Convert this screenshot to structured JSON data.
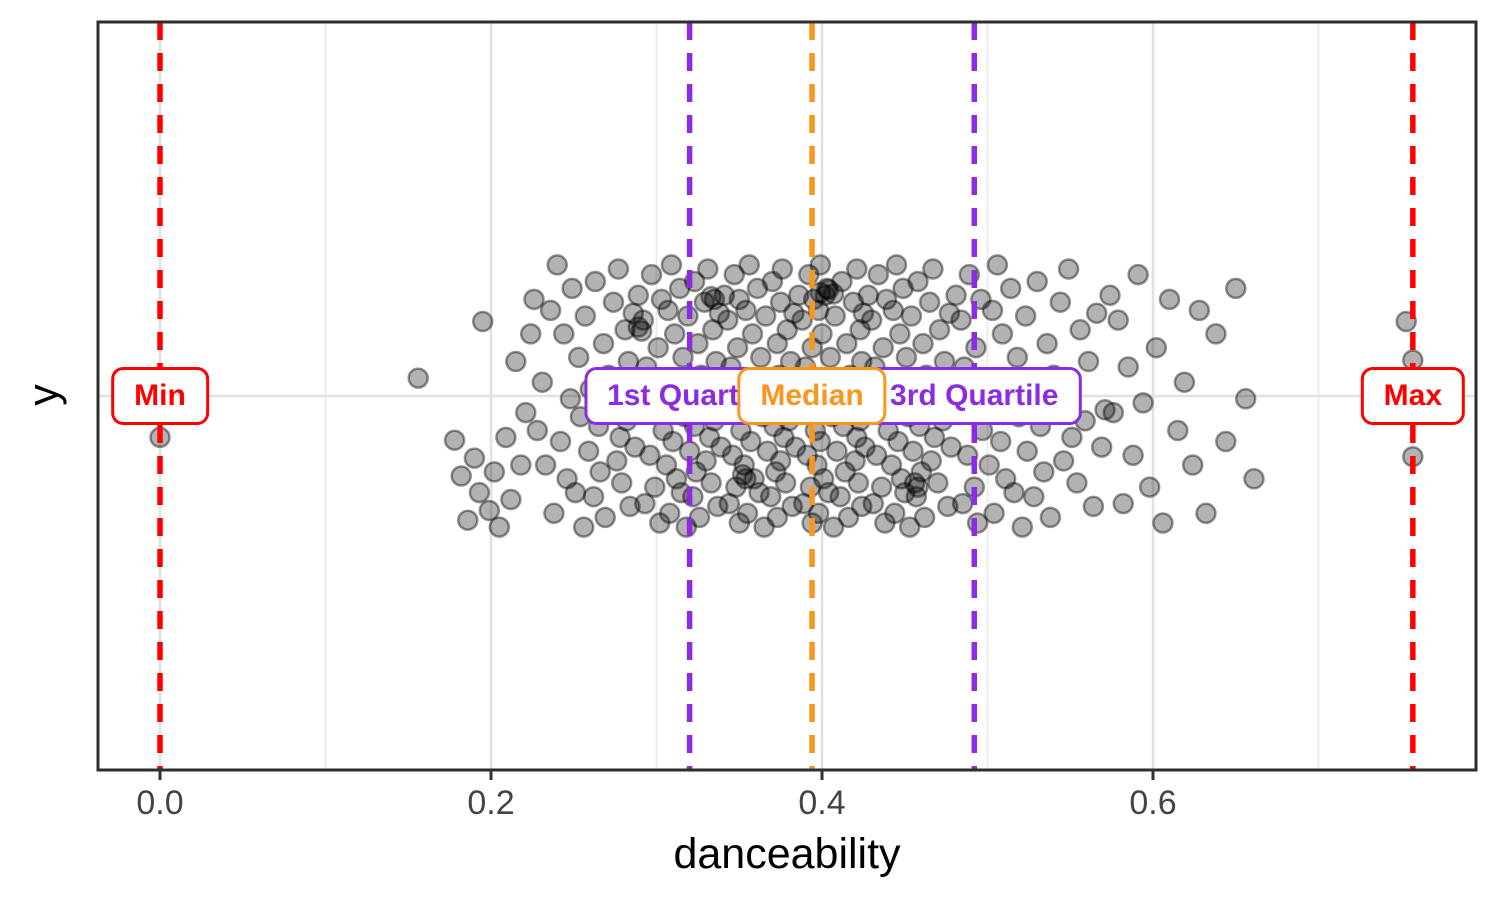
{
  "chart_data": {
    "type": "scatter",
    "subtype": "jittered-strip-plot",
    "title": "",
    "xlabel": "danceability",
    "ylabel": "y",
    "xlim": [
      -0.037,
      0.796
    ],
    "grid": "on",
    "x_major_ticks": [
      {
        "value": 0.0,
        "label": "0.0"
      },
      {
        "value": 0.2,
        "label": "0.2"
      },
      {
        "value": 0.4,
        "label": "0.4"
      },
      {
        "value": 0.6,
        "label": "0.6"
      }
    ],
    "x_minor_gridlines": [
      0.1,
      0.3,
      0.5,
      0.7
    ],
    "y_axis": {
      "type": "discrete-single-level",
      "tick_label": "",
      "center_gridline": true
    },
    "summary_stats": {
      "min": 0.0,
      "q1": 0.32,
      "median": 0.394,
      "q3": 0.492,
      "max": 0.757
    },
    "annotations": [
      {
        "label": "Min",
        "value": 0.0,
        "color": "#FF0000",
        "line_style": "dashed"
      },
      {
        "label": "1st Quartile",
        "value": 0.32,
        "color": "#8B2BE2",
        "line_style": "dashed"
      },
      {
        "label": "3rd Quartile",
        "value": 0.492,
        "color": "#8B2BE2",
        "line_style": "dashed"
      },
      {
        "label": "Median",
        "value": 0.394,
        "color": "#F8961D",
        "line_style": "dashed"
      },
      {
        "label": "Max",
        "value": 0.757,
        "color": "#FF0000",
        "line_style": "dashed"
      }
    ],
    "marker": {
      "shape": "circle",
      "fill": "rgba(0,0,0,0.30)",
      "stroke": "rgba(0,0,0,0.42)",
      "radius_px": 9.5
    },
    "points_format": [
      "danceability_x",
      "vertical_jitter_-1_to_1"
    ],
    "n_points": 343,
    "points": [
      [
        0.156,
        -0.13
      ],
      [
        0.178,
        0.32
      ],
      [
        0.182,
        0.58
      ],
      [
        0.186,
        0.9
      ],
      [
        0.19,
        0.45
      ],
      [
        0.193,
        0.7
      ],
      [
        0.195,
        -0.54
      ],
      [
        0.199,
        0.83
      ],
      [
        0.202,
        0.55
      ],
      [
        0.205,
        0.95
      ],
      [
        0.209,
        0.3
      ],
      [
        0.212,
        0.75
      ],
      [
        0.215,
        -0.25
      ],
      [
        0.218,
        0.5
      ],
      [
        0.221,
        0.12
      ],
      [
        0.224,
        -0.45
      ],
      [
        0.226,
        -0.7
      ],
      [
        0.228,
        0.25
      ],
      [
        0.231,
        -0.1
      ],
      [
        0.233,
        0.5
      ],
      [
        0.236,
        -0.62
      ],
      [
        0.238,
        0.85
      ],
      [
        0.24,
        -0.95
      ],
      [
        0.242,
        0.33
      ],
      [
        0.244,
        -0.45
      ],
      [
        0.246,
        0.6
      ],
      [
        0.248,
        0.02
      ],
      [
        0.249,
        -0.78
      ],
      [
        0.251,
        0.7
      ],
      [
        0.253,
        -0.28
      ],
      [
        0.254,
        0.15
      ],
      [
        0.256,
        0.95
      ],
      [
        0.257,
        -0.58
      ],
      [
        0.259,
        0.4
      ],
      [
        0.26,
        -0.05
      ],
      [
        0.262,
        0.73
      ],
      [
        0.263,
        -0.83
      ],
      [
        0.265,
        0.22
      ],
      [
        0.266,
        0.55
      ],
      [
        0.268,
        -0.38
      ],
      [
        0.269,
        0.88
      ],
      [
        0.271,
        -0.15
      ],
      [
        0.272,
        0.08
      ],
      [
        0.274,
        -0.68
      ],
      [
        0.276,
        0.47
      ],
      [
        0.277,
        -0.92
      ],
      [
        0.278,
        0.3
      ],
      [
        0.279,
        0.63
      ],
      [
        0.281,
        -0.48
      ],
      [
        0.282,
        0.18
      ],
      [
        0.283,
        -0.25
      ],
      [
        0.284,
        0.8
      ],
      [
        0.286,
        -0.6
      ],
      [
        0.287,
        0.37
      ],
      [
        0.288,
        0.1
      ],
      [
        0.289,
        -0.73
      ],
      [
        0.291,
        0.12
      ],
      [
        0.292,
        -0.55
      ],
      [
        0.293,
        0.78
      ],
      [
        0.294,
        -0.21
      ],
      [
        0.296,
        0.43
      ],
      [
        0.297,
        -0.88
      ],
      [
        0.298,
        0.05
      ],
      [
        0.299,
        0.66
      ],
      [
        0.301,
        -0.35
      ],
      [
        0.302,
        0.92
      ],
      [
        0.303,
        -0.7
      ],
      [
        0.304,
        0.25
      ],
      [
        0.305,
        -0.1
      ],
      [
        0.306,
        0.5
      ],
      [
        0.307,
        -0.62
      ],
      [
        0.308,
        0.85
      ],
      [
        0.309,
        -0.95
      ],
      [
        0.31,
        0.33
      ],
      [
        0.311,
        -0.45
      ],
      [
        0.312,
        0.6
      ],
      [
        0.313,
        0.02
      ],
      [
        0.314,
        -0.78
      ],
      [
        0.315,
        0.7
      ],
      [
        0.316,
        -0.28
      ],
      [
        0.317,
        0.15
      ],
      [
        0.318,
        0.95
      ],
      [
        0.319,
        -0.58
      ],
      [
        0.32,
        0.4
      ],
      [
        0.321,
        -0.05
      ],
      [
        0.322,
        0.73
      ],
      [
        0.323,
        -0.83
      ],
      [
        0.323,
        0.22
      ],
      [
        0.324,
        0.55
      ],
      [
        0.325,
        -0.38
      ],
      [
        0.326,
        0.88
      ],
      [
        0.327,
        -0.15
      ],
      [
        0.328,
        0.08
      ],
      [
        0.329,
        -0.68
      ],
      [
        0.33,
        0.47
      ],
      [
        0.331,
        -0.92
      ],
      [
        0.332,
        0.3
      ],
      [
        0.333,
        0.63
      ],
      [
        0.334,
        -0.48
      ],
      [
        0.335,
        0.18
      ],
      [
        0.336,
        -0.25
      ],
      [
        0.337,
        0.8
      ],
      [
        0.338,
        -0.6
      ],
      [
        0.339,
        0.37
      ],
      [
        0.34,
        0.1
      ],
      [
        0.341,
        -0.73
      ],
      [
        0.342,
        0.12
      ],
      [
        0.343,
        -0.55
      ],
      [
        0.344,
        0.78
      ],
      [
        0.345,
        -0.21
      ],
      [
        0.346,
        0.43
      ],
      [
        0.347,
        -0.88
      ],
      [
        0.348,
        0.05
      ],
      [
        0.348,
        0.66
      ],
      [
        0.349,
        -0.35
      ],
      [
        0.35,
        0.92
      ],
      [
        0.35,
        -0.7
      ],
      [
        0.351,
        0.25
      ],
      [
        0.352,
        -0.1
      ],
      [
        0.353,
        0.5
      ],
      [
        0.354,
        -0.62
      ],
      [
        0.355,
        0.85
      ],
      [
        0.356,
        -0.95
      ],
      [
        0.357,
        0.33
      ],
      [
        0.358,
        -0.45
      ],
      [
        0.359,
        0.6
      ],
      [
        0.36,
        0.02
      ],
      [
        0.361,
        -0.78
      ],
      [
        0.362,
        0.7
      ],
      [
        0.363,
        -0.28
      ],
      [
        0.364,
        0.15
      ],
      [
        0.365,
        0.95
      ],
      [
        0.366,
        -0.58
      ],
      [
        0.367,
        0.4
      ],
      [
        0.368,
        -0.05
      ],
      [
        0.369,
        0.73
      ],
      [
        0.37,
        -0.83
      ],
      [
        0.371,
        0.22
      ],
      [
        0.372,
        0.55
      ],
      [
        0.373,
        -0.38
      ],
      [
        0.373,
        0.88
      ],
      [
        0.374,
        -0.15
      ],
      [
        0.374,
        0.08
      ],
      [
        0.375,
        -0.68
      ],
      [
        0.375,
        0.47
      ],
      [
        0.376,
        -0.92
      ],
      [
        0.377,
        0.3
      ],
      [
        0.378,
        0.63
      ],
      [
        0.379,
        -0.48
      ],
      [
        0.38,
        0.18
      ],
      [
        0.381,
        -0.25
      ],
      [
        0.382,
        0.8
      ],
      [
        0.383,
        -0.6
      ],
      [
        0.384,
        0.37
      ],
      [
        0.385,
        0.1
      ],
      [
        0.386,
        -0.73
      ],
      [
        0.387,
        0.12
      ],
      [
        0.388,
        -0.55
      ],
      [
        0.389,
        0.78
      ],
      [
        0.39,
        -0.21
      ],
      [
        0.391,
        0.43
      ],
      [
        0.392,
        -0.88
      ],
      [
        0.392,
        0.05
      ],
      [
        0.393,
        0.66
      ],
      [
        0.394,
        -0.35
      ],
      [
        0.394,
        0.92
      ],
      [
        0.395,
        -0.7
      ],
      [
        0.396,
        0.25
      ],
      [
        0.396,
        -0.1
      ],
      [
        0.397,
        0.5
      ],
      [
        0.398,
        -0.62
      ],
      [
        0.398,
        0.85
      ],
      [
        0.399,
        -0.95
      ],
      [
        0.399,
        0.33
      ],
      [
        0.4,
        -0.45
      ],
      [
        0.401,
        0.6
      ],
      [
        0.402,
        0.02
      ],
      [
        0.403,
        -0.78
      ],
      [
        0.404,
        0.7
      ],
      [
        0.405,
        -0.28
      ],
      [
        0.406,
        0.15
      ],
      [
        0.407,
        0.95
      ],
      [
        0.408,
        -0.58
      ],
      [
        0.409,
        0.4
      ],
      [
        0.41,
        -0.05
      ],
      [
        0.411,
        0.73
      ],
      [
        0.412,
        -0.83
      ],
      [
        0.413,
        0.22
      ],
      [
        0.414,
        0.55
      ],
      [
        0.415,
        -0.38
      ],
      [
        0.416,
        0.88
      ],
      [
        0.417,
        -0.15
      ],
      [
        0.418,
        0.08
      ],
      [
        0.419,
        -0.68
      ],
      [
        0.42,
        0.47
      ],
      [
        0.421,
        -0.92
      ],
      [
        0.421,
        0.3
      ],
      [
        0.422,
        0.63
      ],
      [
        0.423,
        -0.48
      ],
      [
        0.423,
        0.18
      ],
      [
        0.424,
        -0.25
      ],
      [
        0.424,
        0.8
      ],
      [
        0.425,
        -0.6
      ],
      [
        0.426,
        0.37
      ],
      [
        0.427,
        0.1
      ],
      [
        0.428,
        -0.73
      ],
      [
        0.429,
        0.12
      ],
      [
        0.43,
        -0.55
      ],
      [
        0.431,
        0.78
      ],
      [
        0.432,
        -0.21
      ],
      [
        0.433,
        0.43
      ],
      [
        0.434,
        -0.88
      ],
      [
        0.435,
        0.05
      ],
      [
        0.436,
        0.66
      ],
      [
        0.437,
        -0.35
      ],
      [
        0.438,
        0.92
      ],
      [
        0.439,
        -0.7
      ],
      [
        0.44,
        0.25
      ],
      [
        0.441,
        -0.1
      ],
      [
        0.442,
        0.5
      ],
      [
        0.443,
        -0.62
      ],
      [
        0.444,
        0.85
      ],
      [
        0.445,
        -0.95
      ],
      [
        0.446,
        0.33
      ],
      [
        0.447,
        -0.45
      ],
      [
        0.448,
        0.6
      ],
      [
        0.448,
        0.02
      ],
      [
        0.449,
        -0.78
      ],
      [
        0.45,
        0.7
      ],
      [
        0.451,
        -0.28
      ],
      [
        0.452,
        0.15
      ],
      [
        0.453,
        0.95
      ],
      [
        0.454,
        -0.58
      ],
      [
        0.455,
        0.4
      ],
      [
        0.456,
        -0.05
      ],
      [
        0.457,
        0.73
      ],
      [
        0.458,
        -0.83
      ],
      [
        0.459,
        0.22
      ],
      [
        0.46,
        0.55
      ],
      [
        0.461,
        -0.38
      ],
      [
        0.462,
        0.88
      ],
      [
        0.463,
        -0.15
      ],
      [
        0.464,
        0.08
      ],
      [
        0.465,
        -0.68
      ],
      [
        0.466,
        0.47
      ],
      [
        0.467,
        -0.92
      ],
      [
        0.468,
        0.3
      ],
      [
        0.47,
        0.63
      ],
      [
        0.471,
        -0.48
      ],
      [
        0.473,
        0.18
      ],
      [
        0.474,
        -0.25
      ],
      [
        0.476,
        0.8
      ],
      [
        0.477,
        -0.6
      ],
      [
        0.478,
        0.37
      ],
      [
        0.48,
        0.1
      ],
      [
        0.481,
        -0.73
      ],
      [
        0.482,
        0.12
      ],
      [
        0.484,
        -0.55
      ],
      [
        0.485,
        0.78
      ],
      [
        0.486,
        -0.21
      ],
      [
        0.488,
        0.43
      ],
      [
        0.489,
        -0.88
      ],
      [
        0.49,
        0.05
      ],
      [
        0.492,
        0.66
      ],
      [
        0.493,
        -0.35
      ],
      [
        0.494,
        0.92
      ],
      [
        0.496,
        -0.7
      ],
      [
        0.497,
        0.25
      ],
      [
        0.499,
        -0.1
      ],
      [
        0.501,
        0.5
      ],
      [
        0.503,
        -0.62
      ],
      [
        0.504,
        0.85
      ],
      [
        0.506,
        -0.95
      ],
      [
        0.508,
        0.33
      ],
      [
        0.509,
        -0.45
      ],
      [
        0.511,
        0.6
      ],
      [
        0.513,
        0.02
      ],
      [
        0.514,
        -0.78
      ],
      [
        0.516,
        0.7
      ],
      [
        0.518,
        -0.28
      ],
      [
        0.519,
        0.15
      ],
      [
        0.521,
        0.95
      ],
      [
        0.523,
        -0.58
      ],
      [
        0.524,
        0.4
      ],
      [
        0.526,
        -0.05
      ],
      [
        0.528,
        0.73
      ],
      [
        0.53,
        -0.83
      ],
      [
        0.532,
        0.22
      ],
      [
        0.534,
        0.55
      ],
      [
        0.536,
        -0.38
      ],
      [
        0.538,
        0.88
      ],
      [
        0.54,
        -0.15
      ],
      [
        0.542,
        0.08
      ],
      [
        0.544,
        -0.68
      ],
      [
        0.546,
        0.47
      ],
      [
        0.549,
        -0.92
      ],
      [
        0.551,
        0.3
      ],
      [
        0.554,
        0.63
      ],
      [
        0.556,
        -0.48
      ],
      [
        0.559,
        0.18
      ],
      [
        0.561,
        -0.25
      ],
      [
        0.564,
        0.8
      ],
      [
        0.566,
        -0.6
      ],
      [
        0.569,
        0.37
      ],
      [
        0.571,
        0.1
      ],
      [
        0.574,
        -0.73
      ],
      [
        0.576,
        0.12
      ],
      [
        0.579,
        -0.55
      ],
      [
        0.582,
        0.78
      ],
      [
        0.585,
        -0.21
      ],
      [
        0.588,
        0.43
      ],
      [
        0.591,
        -0.88
      ],
      [
        0.594,
        0.05
      ],
      [
        0.598,
        0.66
      ],
      [
        0.602,
        -0.35
      ],
      [
        0.606,
        0.92
      ],
      [
        0.61,
        -0.7
      ],
      [
        0.615,
        0.25
      ],
      [
        0.619,
        -0.1
      ],
      [
        0.624,
        0.5
      ],
      [
        0.628,
        -0.62
      ],
      [
        0.632,
        0.85
      ],
      [
        0.638,
        -0.45
      ],
      [
        0.644,
        0.33
      ],
      [
        0.65,
        -0.78
      ],
      [
        0.656,
        0.02
      ],
      [
        0.661,
        0.6
      ],
      [
        0.399,
        -0.75
      ],
      [
        0.402,
        -0.73
      ],
      [
        0.404,
        -0.77
      ],
      [
        0.407,
        -0.74
      ],
      [
        0.352,
        0.57
      ],
      [
        0.354,
        0.6
      ],
      [
        0.289,
        -0.5
      ],
      [
        0.291,
        -0.47
      ],
      [
        0.456,
        0.63
      ],
      [
        0.458,
        0.66
      ],
      [
        0.333,
        -0.72
      ],
      [
        0.335,
        -0.7
      ],
      [
        0.0,
        0.3
      ],
      [
        0.753,
        -0.54
      ],
      [
        0.757,
        -0.26
      ],
      [
        0.757,
        0.44
      ]
    ]
  },
  "style": {
    "background": "#FFFFFF",
    "panel_border": "#2E2E2E",
    "grid_major": "#E2E2E2",
    "grid_minor": "#ECECEC",
    "tick_mark": "#333333",
    "tick_text": "#444444",
    "axis_title_color": "#000000",
    "label_box_fill": "#FFFFFF"
  }
}
